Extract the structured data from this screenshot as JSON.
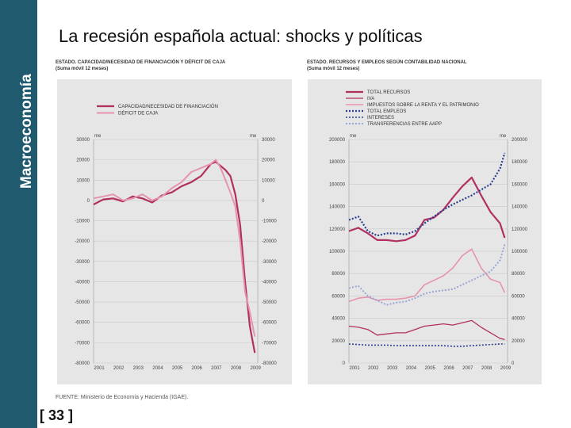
{
  "sidebar": {
    "label": "Macroeconomía"
  },
  "slide": {
    "title": "La recesión española actual: shocks y políticas",
    "page_number": "[ 33 ]"
  },
  "source": "FUENTE: Ministerio de Economía y Hacienda (IGAE).",
  "colors": {
    "sidebar": "#1f5a6e",
    "dark_line": "#b03060",
    "light_line": "#e594ab",
    "dark_dots": "#2c3f8f",
    "light_dots": "#9aa7d4",
    "panel_bg": "#e6e6e6"
  },
  "chart_data": [
    {
      "type": "line",
      "title": "ESTADO. CAPACIDAD/NECESIDAD DE FINANCIACIÓN Y DÉFICIT DE CAJA",
      "subtitle": "(Suma móvil 12 meses)",
      "unit_left": "me",
      "unit_right": "me",
      "ylim": [
        -80000,
        30000
      ],
      "yticks": [
        "30000",
        "20000",
        "10000",
        "0",
        "-10000",
        "-20000",
        "-30000",
        "-40000",
        "-50000",
        "-60000",
        "-70000",
        "-80000"
      ],
      "xticks": [
        "2001",
        "2002",
        "2003",
        "2004",
        "2005",
        "2006",
        "2007",
        "2008",
        "2009"
      ],
      "x": [
        2001,
        2001.5,
        2002,
        2002.5,
        2003,
        2003.5,
        2004,
        2004.5,
        2005,
        2005.5,
        2006,
        2006.5,
        2007,
        2007.25,
        2007.5,
        2007.75,
        2008,
        2008.25,
        2008.5,
        2008.75,
        2009,
        2009.25
      ],
      "series": [
        {
          "name": "CAPACIDAD/NECESIDAD DE FINANCIACIÓN",
          "values": [
            -2000,
            500,
            1000,
            -500,
            2000,
            1000,
            -1000,
            2500,
            4000,
            7000,
            9000,
            12000,
            18000,
            19000,
            17000,
            15000,
            12000,
            3000,
            -12000,
            -40000,
            -62000,
            -75000
          ]
        },
        {
          "name": "DÉFICIT DE CAJA",
          "values": [
            1000,
            2000,
            3000,
            0,
            1000,
            3000,
            0,
            2000,
            6000,
            9000,
            14000,
            16000,
            18000,
            20000,
            16000,
            10000,
            4000,
            -3000,
            -20000,
            -45000,
            -55000,
            -67000
          ]
        }
      ]
    },
    {
      "type": "line",
      "title": "ESTADO. RECURSOS Y EMPLEOS SEGÚN CONTABILIDAD NACIONAL",
      "subtitle": "(Suma móvil 12 meses)",
      "unit_left": "me",
      "unit_right": "me",
      "ylim": [
        0,
        200000
      ],
      "yticks": [
        "200000",
        "180000",
        "160000",
        "140000",
        "120000",
        "100000",
        "80000",
        "60000",
        "40000",
        "20000",
        "0"
      ],
      "xticks": [
        "2001",
        "2002",
        "2003",
        "2004",
        "2005",
        "2006",
        "2007",
        "2008",
        "2009"
      ],
      "x": [
        2001,
        2001.5,
        2002,
        2002.5,
        2003,
        2003.5,
        2004,
        2004.5,
        2005,
        2005.5,
        2006,
        2006.5,
        2007,
        2007.5,
        2008,
        2008.5,
        2009,
        2009.25
      ],
      "series": [
        {
          "name": "TOTAL RECURSOS",
          "values": [
            118000,
            121000,
            116000,
            110000,
            110000,
            109000,
            110000,
            114000,
            128000,
            130000,
            137000,
            148000,
            158000,
            166000,
            150000,
            135000,
            125000,
            112000
          ]
        },
        {
          "name": "IVA",
          "values": [
            33000,
            32000,
            30000,
            25000,
            26000,
            27000,
            27000,
            30000,
            33000,
            34000,
            35000,
            34000,
            36000,
            38000,
            32000,
            27000,
            22000,
            21000
          ]
        },
        {
          "name": "IMPUESTOS SOBRE LA RENTA Y EL PATRIMONIO",
          "values": [
            55000,
            58000,
            59000,
            56000,
            57000,
            57000,
            58000,
            60000,
            70000,
            74000,
            78000,
            85000,
            96000,
            102000,
            85000,
            75000,
            72000,
            63000
          ]
        },
        {
          "name": "TOTAL EMPLEOS",
          "values": [
            128000,
            131000,
            118000,
            114000,
            116000,
            116000,
            115000,
            118000,
            125000,
            131000,
            137000,
            142000,
            146000,
            150000,
            155000,
            160000,
            174000,
            188000
          ]
        },
        {
          "name": "INTERESES",
          "values": [
            17000,
            16500,
            16000,
            16000,
            16000,
            15500,
            15500,
            15500,
            15500,
            15500,
            15500,
            15000,
            15000,
            15500,
            16000,
            16500,
            17000,
            17000
          ]
        },
        {
          "name": "TRANSFERENCIAS ENTRE AAPP",
          "values": [
            67000,
            69000,
            60000,
            56000,
            52000,
            54000,
            55000,
            58000,
            62000,
            64000,
            65000,
            66000,
            70000,
            74000,
            78000,
            82000,
            92000,
            106000
          ]
        }
      ]
    }
  ]
}
